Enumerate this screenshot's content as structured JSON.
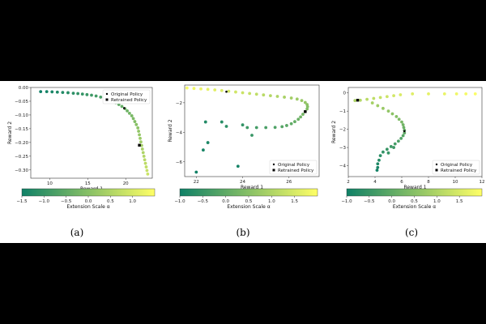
{
  "chart_data": [
    {
      "type": "scatter",
      "caption": "(a)",
      "xlabel": "Reward 1",
      "ylabel": "Reward 2",
      "xlim": [
        7.5,
        23.5
      ],
      "ylim": [
        -0.33,
        0.0
      ],
      "xticks": [
        10,
        15,
        20
      ],
      "yticks": [
        0.0,
        -0.05,
        -0.1,
        -0.15,
        -0.2,
        -0.25,
        -0.3
      ],
      "ytick_labels": [
        "0.00",
        "−0.05",
        "−0.10",
        "−0.15",
        "−0.20",
        "−0.25",
        "−0.30"
      ],
      "legend": {
        "position": "top-right",
        "entries": [
          "Original Policy",
          "Retrained Policy"
        ]
      },
      "original_policy": {
        "x": 19.8,
        "y": -0.075
      },
      "retrained_policy": {
        "x": 21.8,
        "y": -0.21
      },
      "points": [
        [
          8.8,
          -0.015,
          -1.5
        ],
        [
          9.6,
          -0.015,
          -1.44
        ],
        [
          10.3,
          -0.016,
          -1.38
        ],
        [
          11.0,
          -0.017,
          -1.32
        ],
        [
          11.7,
          -0.018,
          -1.26
        ],
        [
          12.4,
          -0.019,
          -1.2
        ],
        [
          13.1,
          -0.021,
          -1.14
        ],
        [
          13.7,
          -0.022,
          -1.08
        ],
        [
          14.3,
          -0.024,
          -1.02
        ],
        [
          14.9,
          -0.026,
          -0.96
        ],
        [
          15.5,
          -0.028,
          -0.9
        ],
        [
          16.1,
          -0.031,
          -0.84
        ],
        [
          16.7,
          -0.035,
          -0.78
        ],
        [
          17.2,
          -0.039,
          -0.72
        ],
        [
          17.7,
          -0.044,
          -0.66
        ],
        [
          18.2,
          -0.049,
          -0.6
        ],
        [
          18.7,
          -0.055,
          -0.54
        ],
        [
          19.1,
          -0.062,
          -0.48
        ],
        [
          19.5,
          -0.069,
          -0.42
        ],
        [
          19.9,
          -0.077,
          -0.36
        ],
        [
          20.2,
          -0.085,
          -0.3
        ],
        [
          20.5,
          -0.094,
          -0.24
        ],
        [
          20.8,
          -0.103,
          -0.18
        ],
        [
          21.0,
          -0.113,
          -0.12
        ],
        [
          21.2,
          -0.124,
          -0.06
        ],
        [
          21.4,
          -0.135,
          0.0
        ],
        [
          21.6,
          -0.147,
          0.06
        ],
        [
          21.7,
          -0.159,
          0.12
        ],
        [
          21.8,
          -0.172,
          0.18
        ],
        [
          21.9,
          -0.185,
          0.24
        ],
        [
          22.0,
          -0.198,
          0.3
        ],
        [
          22.1,
          -0.211,
          0.36
        ],
        [
          22.2,
          -0.224,
          0.42
        ],
        [
          22.3,
          -0.237,
          0.48
        ],
        [
          22.4,
          -0.25,
          0.54
        ],
        [
          22.5,
          -0.263,
          0.6
        ],
        [
          22.6,
          -0.276,
          0.66
        ],
        [
          22.7,
          -0.289,
          0.72
        ],
        [
          22.8,
          -0.302,
          0.78
        ],
        [
          22.9,
          -0.315,
          0.84
        ]
      ],
      "colorbar": {
        "label": "Extension Scale α",
        "min": -1.5,
        "max": 1.5,
        "ticks": [
          -1.5,
          -1.0,
          -0.5,
          0.0,
          0.5,
          1.0
        ],
        "tick_labels": [
          "−1.5",
          "−1.0",
          "−0.5",
          "0.0",
          "0.5",
          "1.0"
        ]
      }
    },
    {
      "type": "scatter",
      "caption": "(b)",
      "xlabel": "Reward 1",
      "ylabel": "Reward 2",
      "xlim": [
        21.5,
        27.3
      ],
      "ylim": [
        -7.0,
        -0.8
      ],
      "xticks": [
        22,
        24,
        26
      ],
      "yticks": [
        -2,
        -4,
        -6
      ],
      "ytick_labels": [
        "−2",
        "−4",
        "−6"
      ],
      "legend": {
        "position": "bottom-right",
        "entries": [
          "Original Policy",
          "Retrained Policy"
        ]
      },
      "original_policy": {
        "x": 23.3,
        "y": -1.25
      },
      "retrained_policy": {
        "x": 26.7,
        "y": -2.6
      },
      "points": [
        [
          21.6,
          -1.0,
          1.9
        ],
        [
          21.9,
          -1.03,
          1.83
        ],
        [
          22.2,
          -1.06,
          1.76
        ],
        [
          22.5,
          -1.09,
          1.69
        ],
        [
          22.8,
          -1.13,
          1.62
        ],
        [
          23.1,
          -1.17,
          1.55
        ],
        [
          23.4,
          -1.22,
          1.48
        ],
        [
          23.7,
          -1.27,
          1.41
        ],
        [
          24.0,
          -1.32,
          1.34
        ],
        [
          24.3,
          -1.37,
          1.27
        ],
        [
          24.6,
          -1.42,
          1.2
        ],
        [
          24.9,
          -1.47,
          1.13
        ],
        [
          25.2,
          -1.52,
          1.06
        ],
        [
          25.5,
          -1.57,
          0.99
        ],
        [
          25.8,
          -1.62,
          0.92
        ],
        [
          26.1,
          -1.68,
          0.85
        ],
        [
          26.35,
          -1.75,
          0.78
        ],
        [
          26.55,
          -1.85,
          0.71
        ],
        [
          26.7,
          -1.98,
          0.64
        ],
        [
          26.78,
          -2.12,
          0.57
        ],
        [
          26.8,
          -2.26,
          0.5
        ],
        [
          26.78,
          -2.42,
          0.43
        ],
        [
          26.7,
          -2.6,
          0.36
        ],
        [
          26.6,
          -2.78,
          0.29
        ],
        [
          26.5,
          -2.96,
          0.22
        ],
        [
          26.4,
          -3.12,
          0.15
        ],
        [
          26.25,
          -3.28,
          0.08
        ],
        [
          26.1,
          -3.42,
          0.01
        ],
        [
          25.9,
          -3.54,
          -0.06
        ],
        [
          25.7,
          -3.62,
          -0.13
        ],
        [
          25.4,
          -3.67,
          -0.2
        ],
        [
          25.0,
          -3.68,
          -0.27
        ],
        [
          24.6,
          -3.68,
          -0.34
        ],
        [
          24.2,
          -3.68,
          -0.41
        ],
        [
          24.4,
          -4.2,
          -0.48
        ],
        [
          24.0,
          -3.5,
          -0.55
        ],
        [
          23.3,
          -3.6,
          -0.62
        ],
        [
          23.1,
          -3.3,
          -0.69
        ],
        [
          22.4,
          -3.3,
          -0.76
        ],
        [
          22.5,
          -4.7,
          -0.83
        ],
        [
          22.3,
          -5.2,
          -0.88
        ],
        [
          23.8,
          -6.3,
          -0.93
        ],
        [
          22.0,
          -6.7,
          -0.98
        ]
      ],
      "colorbar": {
        "label": "Extension Scale α",
        "min": -1.0,
        "max": 2.0,
        "ticks": [
          -1.0,
          -0.5,
          0.0,
          0.5,
          1.0,
          1.5
        ],
        "tick_labels": [
          "−1.0",
          "−0.5",
          "0.0",
          "0.5",
          "1.0",
          "1.5"
        ]
      }
    },
    {
      "type": "scatter",
      "caption": "(c)",
      "xlabel": "Reward 1",
      "ylabel": "Reward 2",
      "xlim": [
        2.0,
        12.0
      ],
      "ylim": [
        -4.6,
        0.3
      ],
      "xticks": [
        2,
        4,
        6,
        8,
        10,
        12
      ],
      "yticks": [
        0,
        -1,
        -2,
        -3,
        -4
      ],
      "ytick_labels": [
        "0",
        "−1",
        "−2",
        "−3",
        "−4"
      ],
      "legend": {
        "position": "bottom-right",
        "entries": [
          "Original Policy",
          "Retrained Policy"
        ]
      },
      "original_policy": {
        "x": 6.2,
        "y": -2.1
      },
      "retrained_policy": {
        "x": 2.7,
        "y": -0.4
      },
      "points": [
        [
          11.5,
          -0.05,
          1.95
        ],
        [
          10.8,
          -0.05,
          1.88
        ],
        [
          10.1,
          -0.05,
          1.81
        ],
        [
          9.2,
          -0.05,
          1.74
        ],
        [
          8.0,
          -0.05,
          1.67
        ],
        [
          6.8,
          -0.05,
          1.6
        ],
        [
          5.9,
          -0.1,
          1.52
        ],
        [
          5.4,
          -0.15,
          1.44
        ],
        [
          4.9,
          -0.2,
          1.36
        ],
        [
          4.4,
          -0.25,
          1.28
        ],
        [
          3.9,
          -0.3,
          1.2
        ],
        [
          3.4,
          -0.35,
          1.12
        ],
        [
          2.9,
          -0.4,
          1.04
        ],
        [
          2.5,
          -0.42,
          0.96
        ],
        [
          3.8,
          -0.55,
          0.88
        ],
        [
          4.2,
          -0.7,
          0.8
        ],
        [
          4.6,
          -0.85,
          0.72
        ],
        [
          5.0,
          -1.0,
          0.64
        ],
        [
          5.3,
          -1.15,
          0.56
        ],
        [
          5.6,
          -1.3,
          0.48
        ],
        [
          5.8,
          -1.45,
          0.4
        ],
        [
          6.0,
          -1.6,
          0.32
        ],
        [
          6.1,
          -1.75,
          0.24
        ],
        [
          6.15,
          -1.9,
          0.16
        ],
        [
          6.2,
          -2.05,
          0.08
        ],
        [
          6.2,
          -2.2,
          0.0
        ],
        [
          6.1,
          -2.35,
          -0.08
        ],
        [
          5.95,
          -2.5,
          -0.16
        ],
        [
          5.75,
          -2.65,
          -0.24
        ],
        [
          5.5,
          -2.8,
          -0.32
        ],
        [
          5.2,
          -2.95,
          -0.4
        ],
        [
          4.9,
          -3.1,
          -0.48
        ],
        [
          4.6,
          -3.25,
          -0.56
        ],
        [
          4.4,
          -3.45,
          -0.64
        ],
        [
          4.3,
          -3.7,
          -0.72
        ],
        [
          4.2,
          -3.9,
          -0.8
        ],
        [
          4.2,
          -4.1,
          -0.88
        ],
        [
          4.15,
          -4.25,
          -0.95
        ],
        [
          5.0,
          -3.3,
          -0.5
        ],
        [
          5.4,
          -3.0,
          -0.4
        ]
      ],
      "colorbar": {
        "label": "Extension Scale α",
        "min": -1.0,
        "max": 2.0,
        "ticks": [
          -1.0,
          -0.5,
          0.0,
          0.5,
          1.0,
          1.5
        ],
        "tick_labels": [
          "−1.0",
          "−0.5",
          "0.0",
          "0.5",
          "1.0",
          "1.5"
        ]
      }
    }
  ]
}
